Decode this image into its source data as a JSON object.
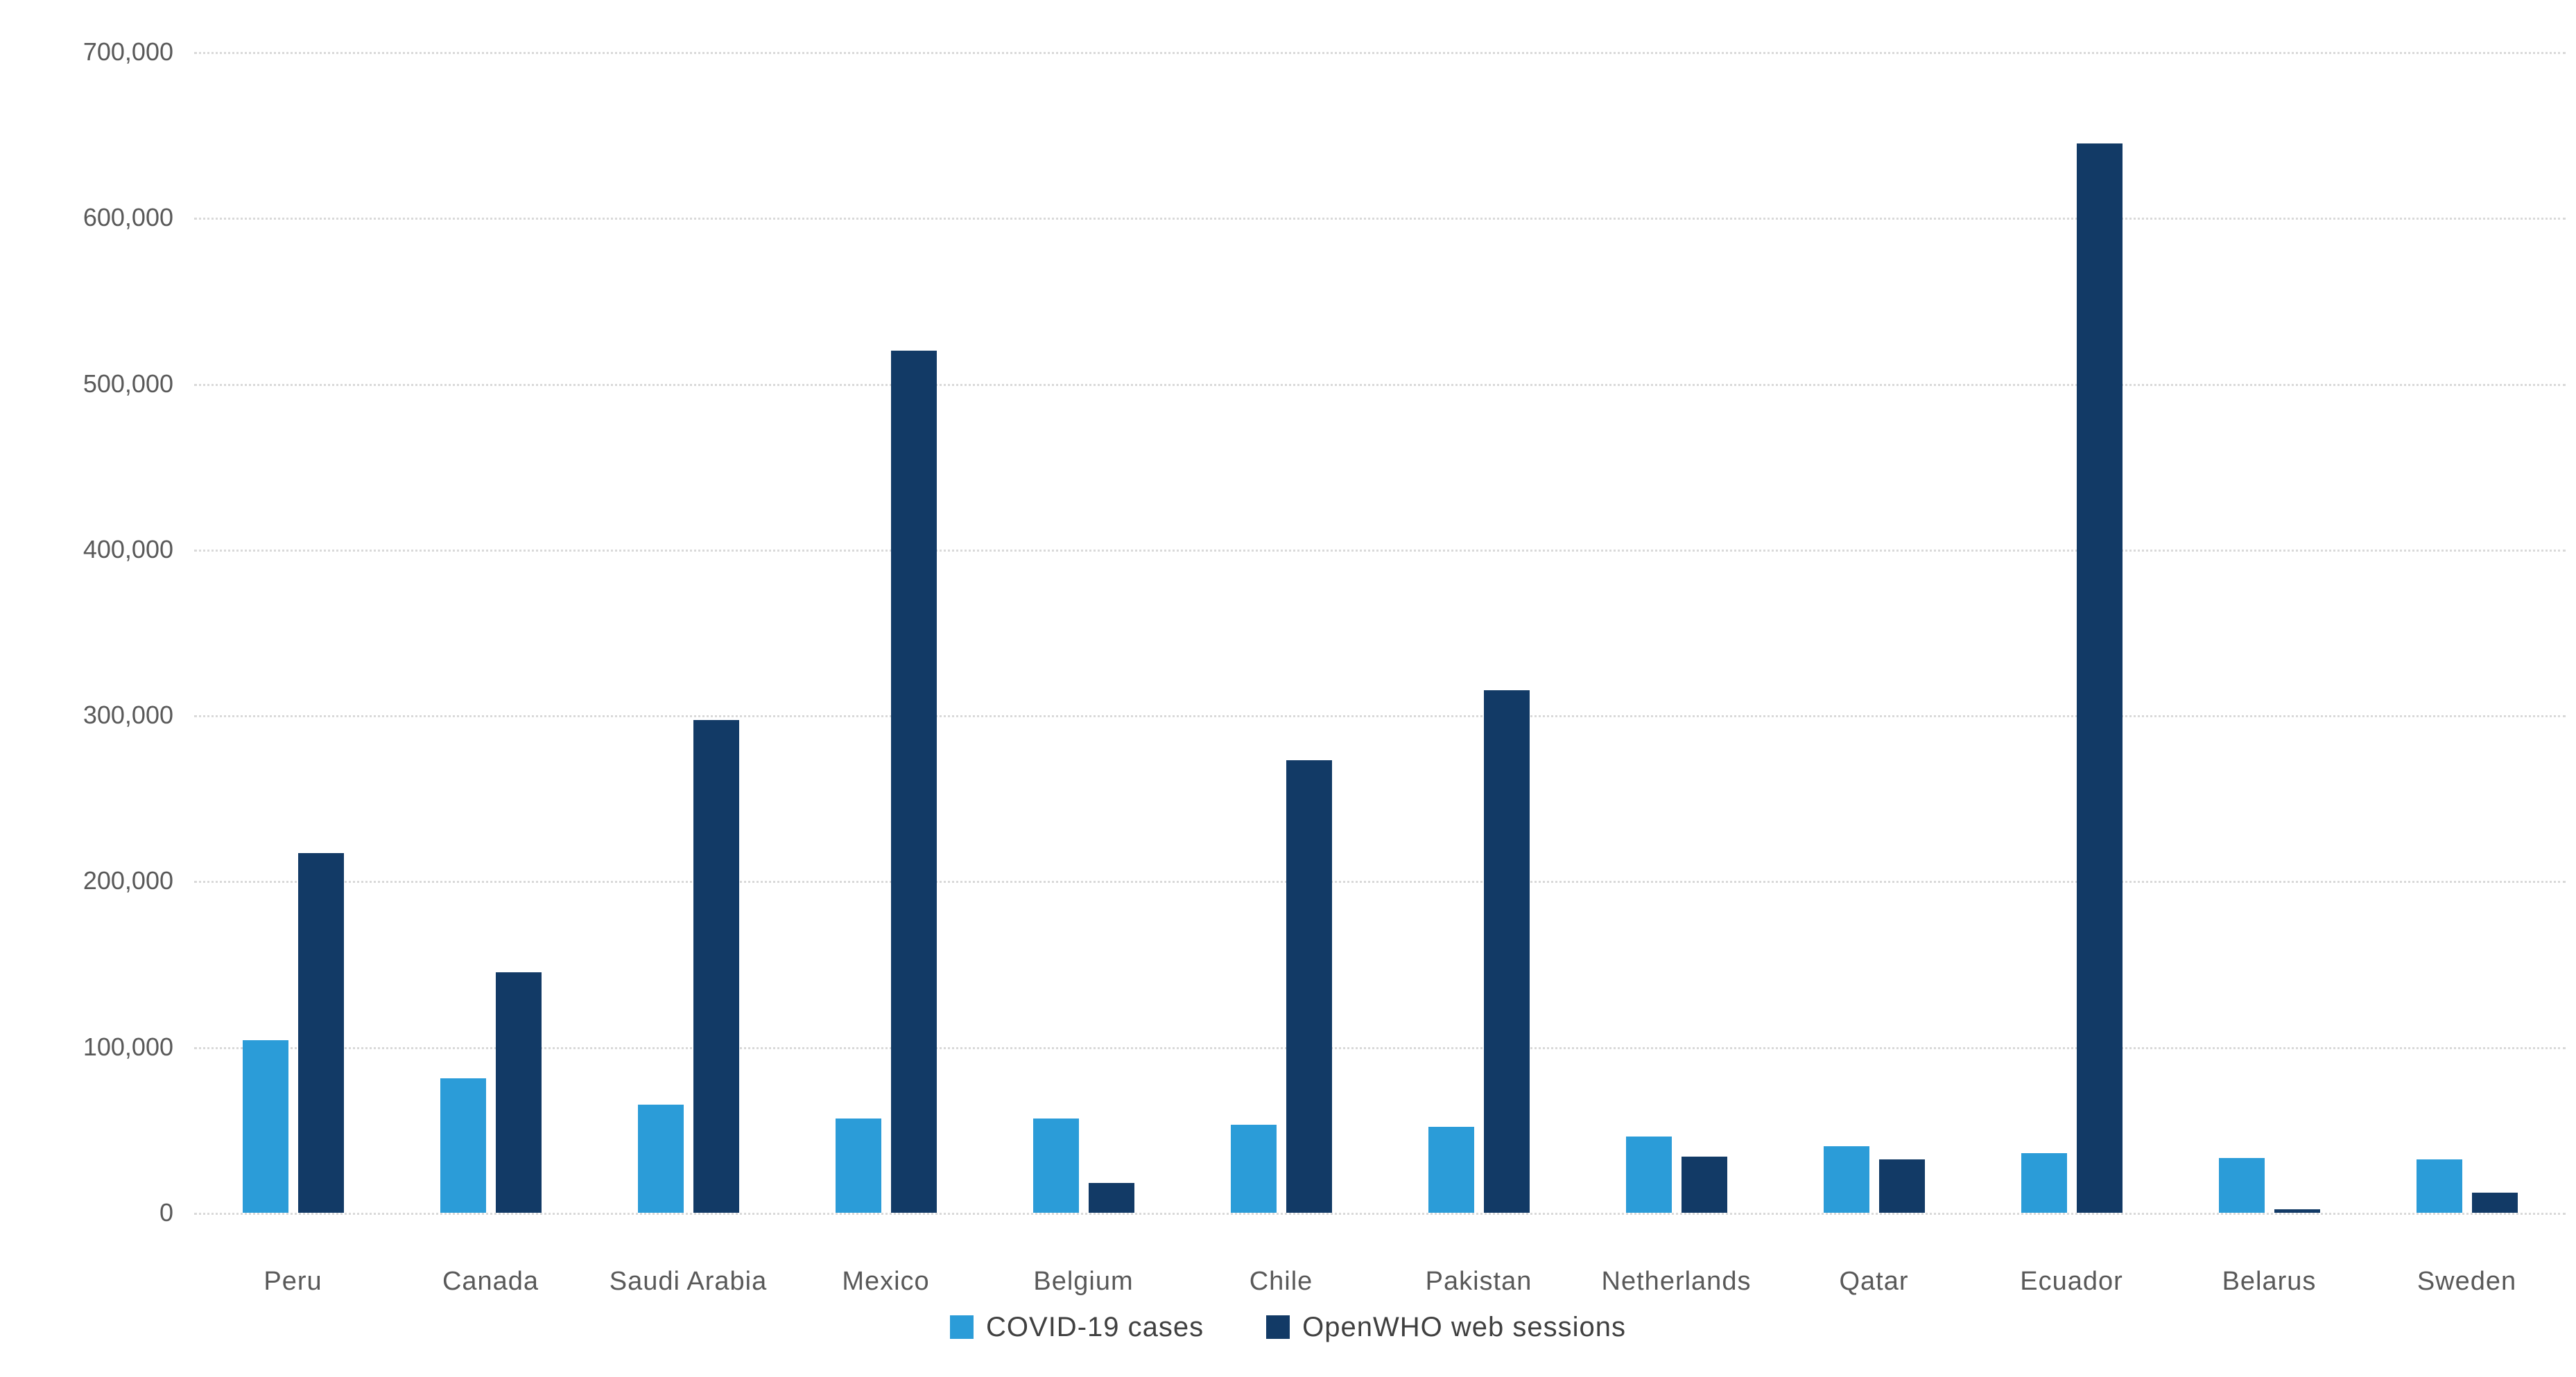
{
  "chart_data": {
    "type": "bar",
    "title": "",
    "xlabel": "",
    "ylabel": "",
    "categories": [
      "Peru",
      "Canada",
      "Saudi Arabia",
      "Mexico",
      "Belgium",
      "Chile",
      "Pakistan",
      "Netherlands",
      "Qatar",
      "Ecuador",
      "Belarus",
      "Sweden"
    ],
    "series": [
      {
        "name": "COVID-19 cases",
        "color": "#2B9CD8",
        "values": [
          104000,
          81000,
          65000,
          57000,
          57000,
          53000,
          52000,
          46000,
          40000,
          36000,
          33000,
          32000
        ]
      },
      {
        "name": "OpenWHO web sessions",
        "color": "#123A66",
        "values": [
          217000,
          145000,
          297000,
          520000,
          18000,
          273000,
          315000,
          34000,
          32000,
          645000,
          2000,
          12000
        ]
      }
    ],
    "ylim": [
      0,
      700000
    ],
    "ytick_interval": 100000,
    "ytick_labels": [
      "0",
      "100,000",
      "200,000",
      "300,000",
      "400,000",
      "500,000",
      "600,000",
      "700,000"
    ],
    "grid": true,
    "gridline_color": "#d9d9d9",
    "axis_label_color": "#595959",
    "legend_position": "bottom-center",
    "legend": [
      "COVID-19 cases",
      "OpenWHO web sessions"
    ]
  }
}
